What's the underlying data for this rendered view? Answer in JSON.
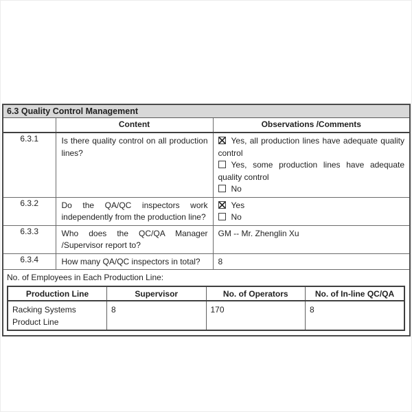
{
  "colors": {
    "title_bar_bg": "#d8d8d8",
    "border": "#4a4a4a",
    "text": "#1f1f1f"
  },
  "doc": {
    "section_title": "6.3 Quality Control Management",
    "main_table": {
      "content_header": "Content",
      "observations_header": "Observations /Comments",
      "rows": [
        {
          "id": "6.3.1",
          "question": "Is there quality control on all production lines?",
          "options": [
            {
              "checked": true,
              "label": "Yes, all production lines have adequate quality control"
            },
            {
              "checked": false,
              "label": "Yes, some production lines have adequate quality control"
            },
            {
              "checked": false,
              "label": "No"
            }
          ]
        },
        {
          "id": "6.3.2",
          "question": "Do the QA/QC inspectors work independently from the production line?",
          "options": [
            {
              "checked": true,
              "label": "Yes"
            },
            {
              "checked": false,
              "label": "No"
            }
          ]
        },
        {
          "id": "6.3.3",
          "question": "Who does the QC/QA Manager /Supervisor report to?",
          "answer": "GM -- Mr. Zhenglin Xu"
        },
        {
          "id": "6.3.4",
          "question": "How many QA/QC inspectors in total?",
          "answer": "8"
        }
      ]
    },
    "employees_label": "No. of Employees in Each Production Line:",
    "employees_table": {
      "headers": [
        "Production Line",
        "Supervisor",
        "No. of Operators",
        "No. of In-line QC/QA"
      ],
      "rows": [
        {
          "cells": [
            "Racking Systems Product Line",
            "8",
            "170",
            "8"
          ]
        }
      ]
    }
  }
}
